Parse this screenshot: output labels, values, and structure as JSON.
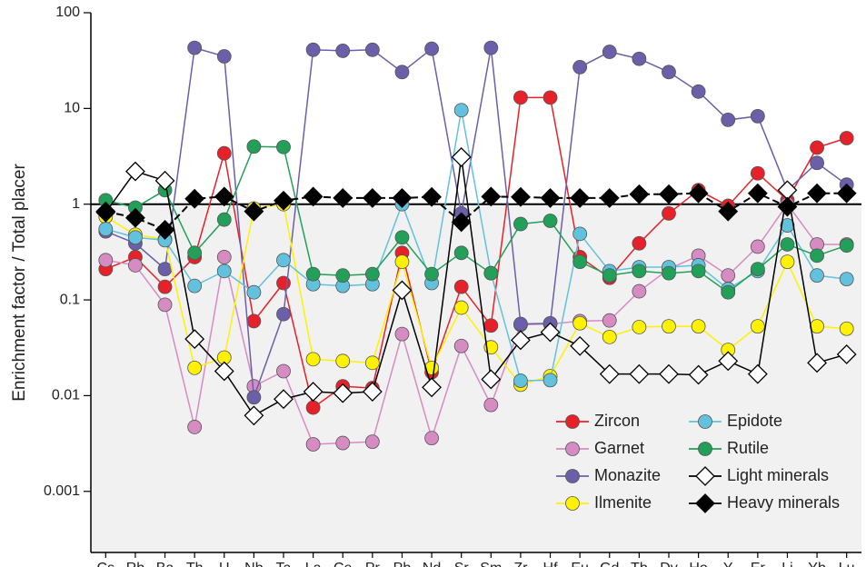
{
  "chart_data": {
    "type": "line",
    "y_label": "Enrichment factor / Total placer",
    "log_y": true,
    "reference_line": 1,
    "shade_below_reference": true,
    "categories": [
      "Cs",
      "Rb",
      "Ba",
      "Th",
      "U",
      "Nb",
      "Ta",
      "La",
      "Ce",
      "Pr",
      "Pb",
      "Nd",
      "Sr",
      "Sm",
      "Zr",
      "Hf",
      "Eu",
      "Gd",
      "Tb",
      "Dy",
      "Ho",
      "Y",
      "Er",
      "Li",
      "Yb",
      "Lu"
    ],
    "ylim": [
      0.00023,
      100
    ],
    "yticks": [
      0.001,
      0.01,
      0.1,
      1,
      10,
      100
    ],
    "legend": "lower right",
    "series": [
      {
        "name": "Zircon",
        "color": "#e62129",
        "marker": "circle",
        "values": [
          0.21,
          0.28,
          0.137,
          0.28,
          3.4,
          0.06,
          0.15,
          0.0075,
          0.0125,
          0.012,
          0.31,
          0.0176,
          0.137,
          0.054,
          13,
          13,
          0.28,
          0.17,
          0.39,
          0.8,
          1.4,
          0.96,
          2.1,
          1.1,
          3.9,
          4.9
        ]
      },
      {
        "name": "Garnet",
        "color": "#d78bc3",
        "marker": "circle",
        "values": [
          0.26,
          0.23,
          0.089,
          0.0047,
          0.28,
          0.0125,
          0.018,
          0.0031,
          0.0032,
          0.0033,
          0.044,
          0.0036,
          0.033,
          0.008,
          0.055,
          0.056,
          0.06,
          0.061,
          0.123,
          0.21,
          0.29,
          0.18,
          0.36,
          1.0,
          0.38,
          0.38
        ]
      },
      {
        "name": "Monazite",
        "color": "#6a5fa8",
        "marker": "circle",
        "values": [
          0.52,
          0.39,
          0.21,
          43,
          35,
          0.0096,
          0.071,
          41,
          40,
          41,
          24,
          42,
          0.8,
          43,
          0.056,
          0.057,
          27,
          39,
          33,
          24,
          15,
          7.6,
          8.3,
          1.4,
          2.7,
          1.6
        ]
      },
      {
        "name": "Ilmenite",
        "color": "#fff200",
        "marker": "circle",
        "values": [
          0.74,
          0.48,
          0.43,
          0.0195,
          0.025,
          0.9,
          1.0,
          0.024,
          0.023,
          0.022,
          0.25,
          0.0195,
          0.083,
          0.032,
          0.013,
          0.016,
          0.057,
          0.041,
          0.052,
          0.053,
          0.053,
          0.03,
          0.053,
          0.25,
          0.053,
          0.05
        ]
      },
      {
        "name": "Epidote",
        "color": "#62c2dd",
        "marker": "circle",
        "values": [
          0.55,
          0.45,
          0.42,
          0.14,
          0.2,
          0.12,
          0.26,
          0.146,
          0.14,
          0.146,
          1.0,
          0.15,
          9.6,
          0.19,
          0.0143,
          0.0145,
          0.49,
          0.2,
          0.22,
          0.22,
          0.23,
          0.13,
          0.2,
          0.6,
          0.18,
          0.165
        ]
      },
      {
        "name": "Rutile",
        "color": "#22a05a",
        "marker": "circle",
        "values": [
          1.1,
          0.92,
          1.4,
          0.31,
          0.69,
          4.0,
          3.95,
          0.186,
          0.18,
          0.186,
          0.45,
          0.186,
          0.31,
          0.19,
          0.62,
          0.67,
          0.25,
          0.18,
          0.2,
          0.19,
          0.2,
          0.12,
          0.21,
          0.38,
          0.29,
          0.37
        ]
      },
      {
        "name": "Light minerals",
        "color": "#000000",
        "marker": "diamond-open",
        "values": [
          0.82,
          2.2,
          1.76,
          0.039,
          0.018,
          0.0062,
          0.0092,
          0.011,
          0.0106,
          0.011,
          0.126,
          0.0122,
          3.1,
          0.0148,
          0.038,
          0.046,
          0.033,
          0.0168,
          0.0168,
          0.0168,
          0.0165,
          0.023,
          0.0168,
          1.4,
          0.022,
          0.027
        ]
      },
      {
        "name": "Heavy minerals",
        "color": "#000000",
        "marker": "diamond",
        "dashed": true,
        "values": [
          0.84,
          0.72,
          0.54,
          1.14,
          1.2,
          0.84,
          1.09,
          1.2,
          1.16,
          1.16,
          1.16,
          1.19,
          0.65,
          1.2,
          1.19,
          1.16,
          1.16,
          1.16,
          1.27,
          1.27,
          1.3,
          0.84,
          1.3,
          0.94,
          1.3,
          1.3
        ]
      }
    ]
  }
}
